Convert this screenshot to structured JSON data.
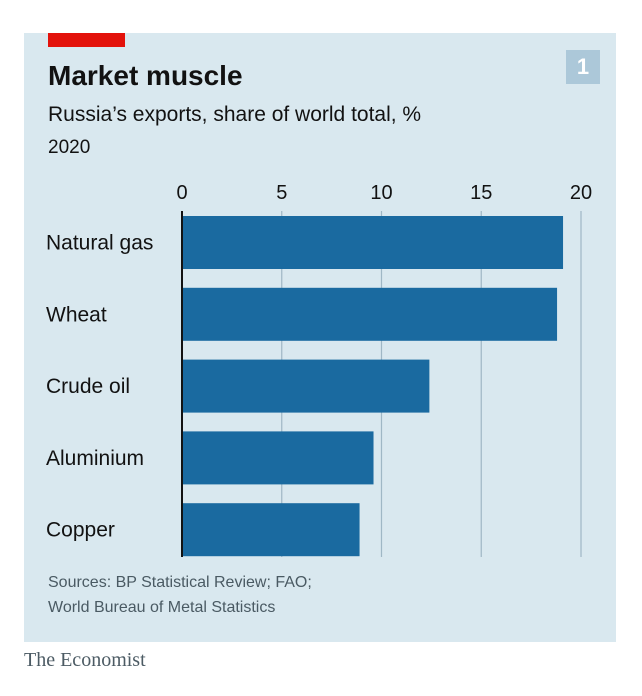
{
  "header": {
    "chart_number": "1",
    "title": "Market muscle",
    "subtitle": "Russia’s exports, share of world total, %",
    "year": "2020"
  },
  "footer": {
    "source_line1": "Sources: BP Statistical Review; FAO;",
    "source_line2": "World Bureau of Metal Statistics",
    "brand": "The Economist"
  },
  "colors": {
    "panel_background": "#d9e8ef",
    "bar": "#1a6aa0",
    "accent": "#e3120b",
    "number_badge": "#acc8d9",
    "gridline": "#9fb7c5",
    "axis": "#121212"
  },
  "chart_data": {
    "type": "bar",
    "orientation": "horizontal",
    "categories": [
      "Natural gas",
      "Wheat",
      "Crude oil",
      "Aluminium",
      "Copper"
    ],
    "values": [
      19.1,
      18.8,
      12.4,
      9.6,
      8.9
    ],
    "title": "Market muscle",
    "subtitle": "Russia’s exports, share of world total, %",
    "xlabel": "",
    "ylabel": "",
    "xlim": [
      0,
      20
    ],
    "xticks": [
      0,
      5,
      10,
      15,
      20
    ],
    "tick_labels": [
      "0",
      "5",
      "10",
      "15",
      "20"
    ],
    "grid": true,
    "legend": "none"
  }
}
